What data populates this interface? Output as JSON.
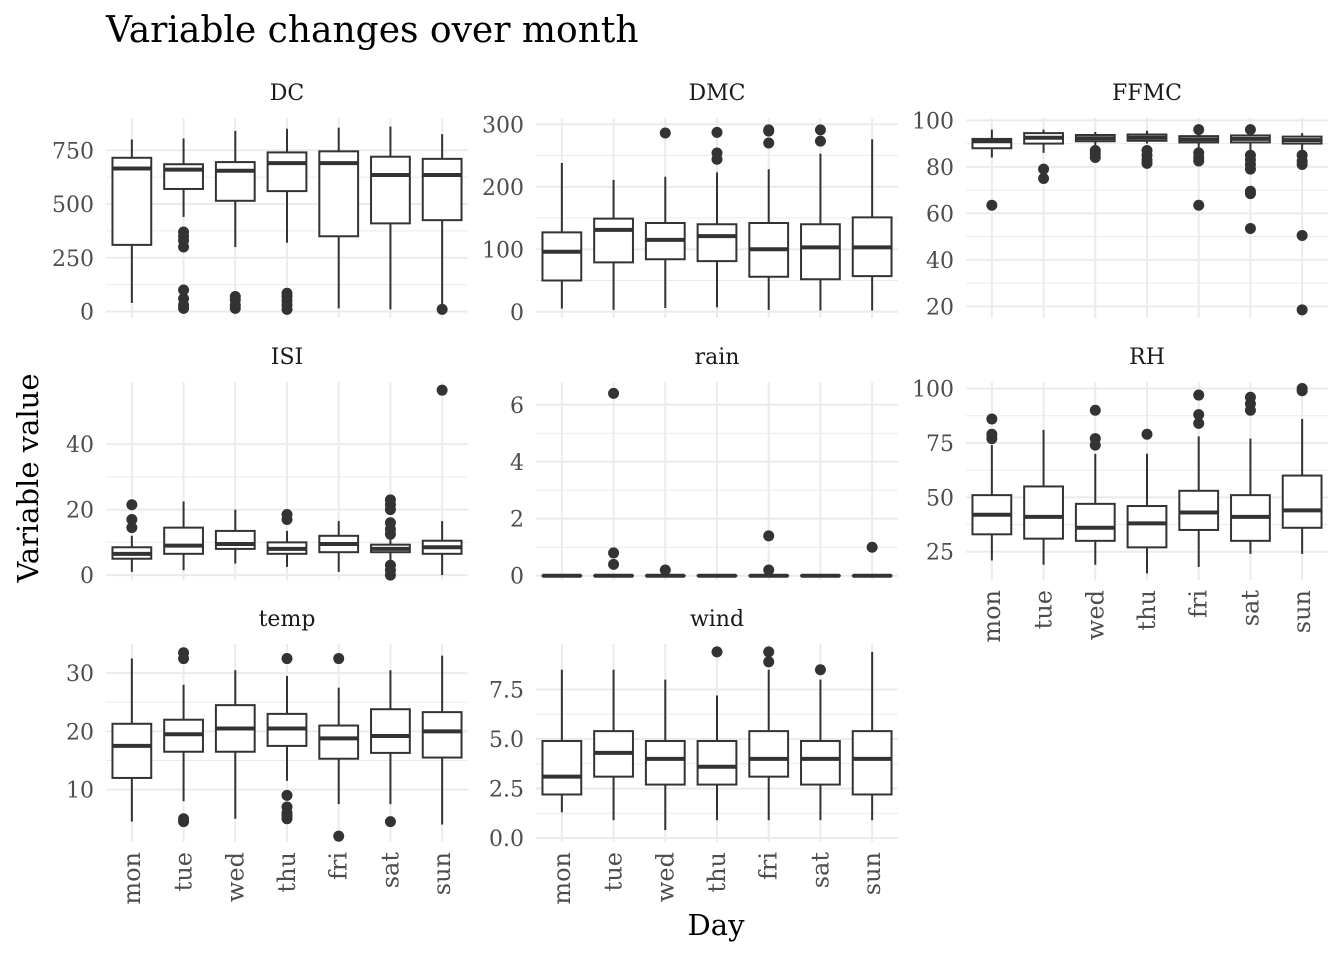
{
  "chart_data": {
    "type": "boxplot",
    "title": "Variable changes over month",
    "xlabel": "Day",
    "ylabel": "Variable value",
    "categories": [
      "mon",
      "tue",
      "wed",
      "thu",
      "fri",
      "sat",
      "sun"
    ],
    "grid": true,
    "legend": "none",
    "panels": [
      {
        "name": "DC",
        "ylim": [
          -30,
          900
        ],
        "yticks": [
          {
            "v": 0,
            "label": "0"
          },
          {
            "v": 250,
            "label": "250"
          },
          {
            "v": 500,
            "label": "500"
          },
          {
            "v": 750,
            "label": "750"
          }
        ],
        "boxes": [
          {
            "whisker_low": 40,
            "q1": 310,
            "median": 665,
            "q3": 715,
            "whisker_high": 800,
            "outliers": []
          },
          {
            "whisker_low": 440,
            "q1": 570,
            "median": 660,
            "q3": 685,
            "whisker_high": 805,
            "outliers": [
              15,
              30,
              60,
              100,
              300,
              330,
              350,
              370
            ]
          },
          {
            "whisker_low": 300,
            "q1": 515,
            "median": 655,
            "q3": 695,
            "whisker_high": 840,
            "outliers": [
              15,
              30,
              55,
              70
            ]
          },
          {
            "whisker_low": 320,
            "q1": 560,
            "median": 690,
            "q3": 740,
            "whisker_high": 850,
            "outliers": [
              10,
              30,
              50,
              70,
              85
            ]
          },
          {
            "whisker_low": 15,
            "q1": 350,
            "median": 690,
            "q3": 745,
            "whisker_high": 855,
            "outliers": []
          },
          {
            "whisker_low": 10,
            "q1": 410,
            "median": 635,
            "q3": 720,
            "whisker_high": 860,
            "outliers": []
          },
          {
            "whisker_low": 10,
            "q1": 425,
            "median": 635,
            "q3": 710,
            "whisker_high": 825,
            "outliers": [
              10
            ]
          }
        ]
      },
      {
        "name": "DMC",
        "ylim": [
          -10,
          310
        ],
        "yticks": [
          {
            "v": 0,
            "label": "0"
          },
          {
            "v": 100,
            "label": "100"
          },
          {
            "v": 200,
            "label": "200"
          },
          {
            "v": 300,
            "label": "300"
          }
        ],
        "boxes": [
          {
            "whisker_low": 5,
            "q1": 50,
            "median": 96,
            "q3": 127,
            "whisker_high": 238,
            "outliers": []
          },
          {
            "whisker_low": 3,
            "q1": 79,
            "median": 131,
            "q3": 149,
            "whisker_high": 211,
            "outliers": []
          },
          {
            "whisker_low": 6,
            "q1": 84,
            "median": 115,
            "q3": 142,
            "whisker_high": 216,
            "outliers": [
              286
            ]
          },
          {
            "whisker_low": 7,
            "q1": 81,
            "median": 121,
            "q3": 140,
            "whisker_high": 223,
            "outliers": [
              244,
              254,
              287
            ]
          },
          {
            "whisker_low": 3,
            "q1": 56,
            "median": 100,
            "q3": 142,
            "whisker_high": 228,
            "outliers": [
              270,
              289,
              291
            ]
          },
          {
            "whisker_low": 2,
            "q1": 52,
            "median": 103,
            "q3": 140,
            "whisker_high": 253,
            "outliers": [
              273,
              291
            ]
          },
          {
            "whisker_low": 2,
            "q1": 57,
            "median": 103,
            "q3": 151,
            "whisker_high": 276,
            "outliers": []
          }
        ]
      },
      {
        "name": "FFMC",
        "ylim": [
          15,
          101
        ],
        "yticks": [
          {
            "v": 20,
            "label": "20"
          },
          {
            "v": 40,
            "label": "40"
          },
          {
            "v": 60,
            "label": "60"
          },
          {
            "v": 80,
            "label": "80"
          },
          {
            "v": 100,
            "label": "100"
          }
        ],
        "boxes": [
          {
            "whisker_low": 84,
            "q1": 88,
            "median": 91,
            "q3": 92,
            "whisker_high": 96,
            "outliers": [
              63.5
            ]
          },
          {
            "whisker_low": 86,
            "q1": 90,
            "median": 92.5,
            "q3": 94.5,
            "whisker_high": 96,
            "outliers": [
              75,
              79
            ]
          },
          {
            "whisker_low": 88,
            "q1": 91,
            "median": 92.3,
            "q3": 93.7,
            "whisker_high": 95,
            "outliers": [
              84,
              85.5,
              87
            ]
          },
          {
            "whisker_low": 90,
            "q1": 91.2,
            "median": 92.5,
            "q3": 93.9,
            "whisker_high": 95.5,
            "outliers": [
              81.5,
              83,
              85,
              87
            ]
          },
          {
            "whisker_low": 87,
            "q1": 90.5,
            "median": 91.8,
            "q3": 93.2,
            "whisker_high": 95,
            "outliers": [
              63.5,
              82.5,
              84,
              86,
              96
            ]
          },
          {
            "whisker_low": 86,
            "q1": 90.5,
            "median": 92,
            "q3": 93.5,
            "whisker_high": 95,
            "outliers": [
              53.5,
              68.5,
              69.5,
              79,
              81,
              83,
              85,
              96
            ]
          },
          {
            "whisker_low": 86,
            "q1": 90,
            "median": 91.5,
            "q3": 93,
            "whisker_high": 94.5,
            "outliers": [
              18.5,
              50.5,
              81,
              82.5,
              85
            ]
          }
        ]
      },
      {
        "name": "ISI",
        "ylim": [
          -1.5,
          59
        ],
        "yticks": [
          {
            "v": 0,
            "label": "0"
          },
          {
            "v": 20,
            "label": "20"
          },
          {
            "v": 40,
            "label": "40"
          }
        ],
        "boxes": [
          {
            "whisker_low": 1,
            "q1": 5,
            "median": 6.5,
            "q3": 8.5,
            "whisker_high": 12,
            "outliers": [
              14.5,
              17,
              21.5
            ]
          },
          {
            "whisker_low": 1.5,
            "q1": 6.5,
            "median": 9,
            "q3": 14.5,
            "whisker_high": 22.5,
            "outliers": []
          },
          {
            "whisker_low": 3.5,
            "q1": 8,
            "median": 9.5,
            "q3": 13.5,
            "whisker_high": 20,
            "outliers": []
          },
          {
            "whisker_low": 2.5,
            "q1": 6.5,
            "median": 8,
            "q3": 10,
            "whisker_high": 13.5,
            "outliers": [
              17,
              18.5
            ]
          },
          {
            "whisker_low": 1,
            "q1": 7,
            "median": 9.5,
            "q3": 12,
            "whisker_high": 16.5,
            "outliers": []
          },
          {
            "whisker_low": 4.5,
            "q1": 7,
            "median": 8,
            "q3": 9.3,
            "whisker_high": 11,
            "outliers": [
              0,
              1.5,
              3,
              12.5,
              14,
              16,
              20,
              21.5,
              23
            ]
          },
          {
            "whisker_low": 0,
            "q1": 6.5,
            "median": 8.5,
            "q3": 10.5,
            "whisker_high": 16.5,
            "outliers": [
              56.5
            ]
          }
        ]
      },
      {
        "name": "rain",
        "ylim": [
          -0.15,
          6.8
        ],
        "yticks": [
          {
            "v": 0,
            "label": "0"
          },
          {
            "v": 2,
            "label": "2"
          },
          {
            "v": 4,
            "label": "4"
          },
          {
            "v": 6,
            "label": "6"
          }
        ],
        "boxes": [
          {
            "whisker_low": 0,
            "q1": 0,
            "median": 0,
            "q3": 0,
            "whisker_high": 0,
            "outliers": []
          },
          {
            "whisker_low": 0,
            "q1": 0,
            "median": 0,
            "q3": 0,
            "whisker_high": 0,
            "outliers": [
              0.4,
              0.8,
              6.4
            ]
          },
          {
            "whisker_low": 0,
            "q1": 0,
            "median": 0,
            "q3": 0,
            "whisker_high": 0,
            "outliers": [
              0.2
            ]
          },
          {
            "whisker_low": 0,
            "q1": 0,
            "median": 0,
            "q3": 0,
            "whisker_high": 0,
            "outliers": []
          },
          {
            "whisker_low": 0,
            "q1": 0,
            "median": 0,
            "q3": 0,
            "whisker_high": 0,
            "outliers": [
              0.2,
              1.4
            ]
          },
          {
            "whisker_low": 0,
            "q1": 0,
            "median": 0,
            "q3": 0,
            "whisker_high": 0,
            "outliers": []
          },
          {
            "whisker_low": 0,
            "q1": 0,
            "median": 0,
            "q3": 0,
            "whisker_high": 0,
            "outliers": [
              1.0
            ]
          }
        ]
      },
      {
        "name": "RH",
        "ylim": [
          12,
          103
        ],
        "yticks": [
          {
            "v": 25,
            "label": "25"
          },
          {
            "v": 50,
            "label": "50"
          },
          {
            "v": 75,
            "label": "75"
          },
          {
            "v": 100,
            "label": "100"
          }
        ],
        "boxes": [
          {
            "whisker_low": 21,
            "q1": 33,
            "median": 42,
            "q3": 51,
            "whisker_high": 74,
            "outliers": [
              77,
              79,
              86
            ]
          },
          {
            "whisker_low": 19,
            "q1": 31,
            "median": 41,
            "q3": 55,
            "whisker_high": 81,
            "outliers": []
          },
          {
            "whisker_low": 19,
            "q1": 30,
            "median": 36,
            "q3": 47,
            "whisker_high": 70,
            "outliers": [
              74,
              77,
              90
            ]
          },
          {
            "whisker_low": 15,
            "q1": 27,
            "median": 38,
            "q3": 46,
            "whisker_high": 70,
            "outliers": [
              79
            ]
          },
          {
            "whisker_low": 18,
            "q1": 35,
            "median": 43,
            "q3": 53,
            "whisker_high": 78,
            "outliers": [
              84,
              88,
              97
            ]
          },
          {
            "whisker_low": 24,
            "q1": 30,
            "median": 41,
            "q3": 51,
            "whisker_high": 77,
            "outliers": [
              90,
              93,
              96
            ]
          },
          {
            "whisker_low": 24,
            "q1": 36,
            "median": 44,
            "q3": 60,
            "whisker_high": 86,
            "outliers": [
              99,
              100
            ]
          }
        ]
      },
      {
        "name": "temp",
        "ylim": [
          1,
          35
        ],
        "yticks": [
          {
            "v": 10,
            "label": "10"
          },
          {
            "v": 20,
            "label": "20"
          },
          {
            "v": 30,
            "label": "30"
          }
        ],
        "boxes": [
          {
            "whisker_low": 4.5,
            "q1": 12,
            "median": 17.5,
            "q3": 21.3,
            "whisker_high": 32.5,
            "outliers": []
          },
          {
            "whisker_low": 8,
            "q1": 16.5,
            "median": 19.5,
            "q3": 22,
            "whisker_high": 28,
            "outliers": [
              4.5,
              5,
              32.5,
              33.5
            ]
          },
          {
            "whisker_low": 5,
            "q1": 16.5,
            "median": 20.5,
            "q3": 24.5,
            "whisker_high": 30.5,
            "outliers": []
          },
          {
            "whisker_low": 11.5,
            "q1": 17.5,
            "median": 20.5,
            "q3": 23,
            "whisker_high": 29.5,
            "outliers": [
              5,
              5.5,
              6,
              7,
              9,
              32.5
            ]
          },
          {
            "whisker_low": 7.5,
            "q1": 15.3,
            "median": 18.8,
            "q3": 21,
            "whisker_high": 27.5,
            "outliers": [
              2,
              32.5
            ]
          },
          {
            "whisker_low": 7.5,
            "q1": 16.3,
            "median": 19.2,
            "q3": 23.8,
            "whisker_high": 30.5,
            "outliers": [
              4.5
            ]
          },
          {
            "whisker_low": 4,
            "q1": 15.5,
            "median": 20,
            "q3": 23.3,
            "whisker_high": 33,
            "outliers": []
          }
        ]
      },
      {
        "name": "wind",
        "ylim": [
          -0.2,
          9.8
        ],
        "yticks": [
          {
            "v": 0,
            "label": "0.0"
          },
          {
            "v": 2.5,
            "label": "2.5"
          },
          {
            "v": 5,
            "label": "5.0"
          },
          {
            "v": 7.5,
            "label": "7.5"
          }
        ],
        "boxes": [
          {
            "whisker_low": 1.3,
            "q1": 2.2,
            "median": 3.1,
            "q3": 4.9,
            "whisker_high": 8.5,
            "outliers": []
          },
          {
            "whisker_low": 0.9,
            "q1": 3.1,
            "median": 4.3,
            "q3": 5.4,
            "whisker_high": 8.5,
            "outliers": []
          },
          {
            "whisker_low": 0.4,
            "q1": 2.7,
            "median": 4,
            "q3": 4.9,
            "whisker_high": 8,
            "outliers": []
          },
          {
            "whisker_low": 0.9,
            "q1": 2.7,
            "median": 3.6,
            "q3": 4.9,
            "whisker_high": 7.2,
            "outliers": [
              9.4
            ]
          },
          {
            "whisker_low": 0.9,
            "q1": 3.1,
            "median": 4,
            "q3": 5.4,
            "whisker_high": 8.5,
            "outliers": [
              8.9,
              9.4
            ]
          },
          {
            "whisker_low": 0.9,
            "q1": 2.7,
            "median": 4,
            "q3": 4.9,
            "whisker_high": 8,
            "outliers": [
              8.5
            ]
          },
          {
            "whisker_low": 0.9,
            "q1": 2.2,
            "median": 4,
            "q3": 5.4,
            "whisker_high": 9.4,
            "outliers": []
          }
        ]
      }
    ]
  }
}
